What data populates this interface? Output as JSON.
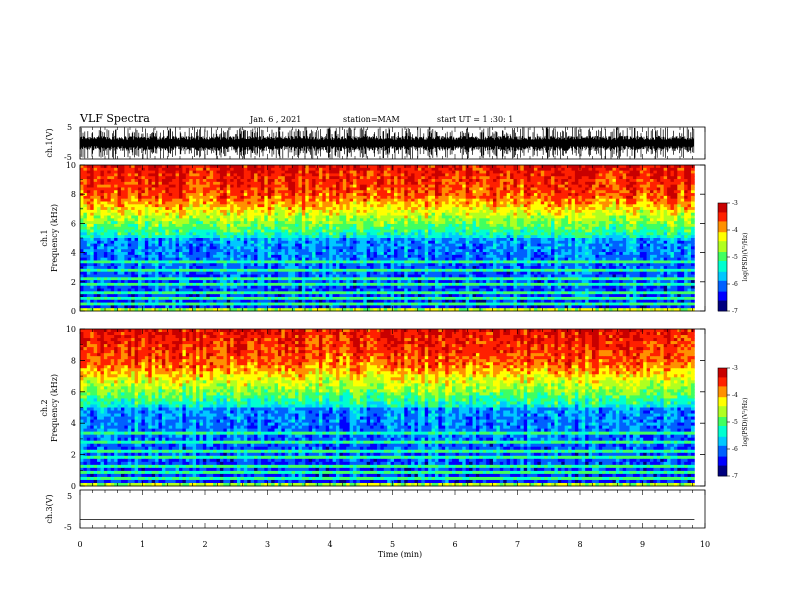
{
  "header": {
    "title": "VLF Spectra",
    "date": "Jan. 6 , 2021",
    "station": "station=MAM",
    "start": "start UT = 1 :30: 1"
  },
  "chart_data": [
    {
      "type": "line",
      "id": "ch1-waveform",
      "ylabel": "ch.1(V)",
      "yticks": [
        "5",
        "-5"
      ],
      "ylim": [
        -5,
        5
      ],
      "xlim": [
        0,
        10
      ],
      "data_xmax": 9.83,
      "description": "dense impulsive waveform filling most of the range"
    },
    {
      "type": "heatmap",
      "id": "ch1-spectrogram",
      "ylabel_top": "ch.1",
      "ylabel": "Frequency (kHz)",
      "yticks": [
        "0",
        "2",
        "4",
        "6",
        "8",
        "10"
      ],
      "ylim": [
        0,
        10
      ],
      "xlim": [
        0,
        10
      ],
      "colorbar": {
        "label": "log(PSD)(V²/Hz)",
        "ticks": [
          "-3",
          "-4",
          "-5",
          "-6",
          "-7"
        ],
        "range": [
          -7,
          -3
        ],
        "colors": [
          "#00007f",
          "#0000ff",
          "#0060ff",
          "#00c8ff",
          "#00ffd0",
          "#40ff60",
          "#b0ff20",
          "#ffff00",
          "#ff9000",
          "#ff2000",
          "#c80000"
        ]
      }
    },
    {
      "type": "heatmap",
      "id": "ch2-spectrogram",
      "ylabel_top": "ch.2",
      "ylabel": "Frequency (kHz)",
      "yticks": [
        "0",
        "2",
        "4",
        "6",
        "8",
        "10"
      ],
      "ylim": [
        0,
        10
      ],
      "xlim": [
        0,
        10
      ],
      "colorbar": {
        "label": "log(PSD)(V²/Hz)",
        "ticks": [
          "-3",
          "-4",
          "-5",
          "-6",
          "-7"
        ],
        "range": [
          -7,
          -3
        ],
        "colors": [
          "#00007f",
          "#0000ff",
          "#0060ff",
          "#00c8ff",
          "#00ffd0",
          "#40ff60",
          "#b0ff20",
          "#ffff00",
          "#ff9000",
          "#ff2000",
          "#c80000"
        ]
      }
    },
    {
      "type": "line",
      "id": "ch3-waveform",
      "ylabel": "ch.3(V)",
      "yticks": [
        "5",
        "-5"
      ],
      "ylim": [
        -5,
        5
      ],
      "xlim": [
        0,
        10
      ],
      "values_constant": -2.8
    }
  ],
  "xaxis": {
    "label": "Time (min)",
    "ticks": [
      "0",
      "1",
      "2",
      "3",
      "4",
      "5",
      "6",
      "7",
      "8",
      "9",
      "10"
    ]
  }
}
